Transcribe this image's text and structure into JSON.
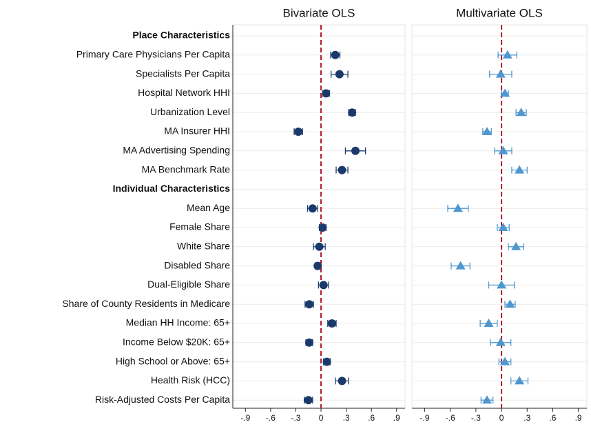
{
  "chart_data": {
    "type": "coefplot",
    "groups": [
      {
        "name": "Place Characteristics",
        "categories": [
          "Primary Care Physicians Per Capita",
          "Specialists Per Capita",
          "Hospital Network HHI",
          "Urbanization Level",
          "MA Insurer HHI",
          "MA Advertising Spending",
          "MA Benchmark Rate"
        ]
      },
      {
        "name": "Individual Characteristics",
        "categories": [
          "Mean Age",
          "Female Share",
          "White Share",
          "Disabled Share",
          "Dual-Eligible Share",
          "Share of County Residents in Medicare",
          "Median HH Income: 65+",
          "Income Below $20K: 65+",
          "High School or Above: 65+",
          "Health Risk (HCC)",
          "Risk-Adjusted Costs Per Capita"
        ]
      }
    ],
    "series": [
      {
        "name": "Bivariate OLS",
        "color": "#1b3a6b",
        "marker": "circle",
        "values": [
          0.17,
          0.22,
          0.06,
          0.37,
          -0.27,
          0.41,
          0.25,
          -0.1,
          0.02,
          -0.02,
          -0.04,
          0.03,
          -0.14,
          0.13,
          -0.14,
          0.07,
          0.25,
          -0.15
        ],
        "errors": [
          0.055,
          0.1,
          0.04,
          0.04,
          0.05,
          0.12,
          0.07,
          0.06,
          0.04,
          0.07,
          0.03,
          0.06,
          0.05,
          0.05,
          0.04,
          0.04,
          0.08,
          0.05
        ]
      },
      {
        "name": "Multivariate OLS",
        "color": "#4f97cf",
        "marker": "triangle",
        "values": [
          0.07,
          -0.01,
          0.04,
          0.23,
          -0.17,
          0.02,
          0.21,
          -0.51,
          0.02,
          0.17,
          -0.48,
          0.0,
          0.1,
          -0.15,
          -0.01,
          0.04,
          0.21,
          -0.17
        ],
        "errors": [
          0.11,
          0.13,
          0.04,
          0.06,
          0.05,
          0.1,
          0.09,
          0.12,
          0.07,
          0.09,
          0.11,
          0.15,
          0.06,
          0.1,
          0.12,
          0.07,
          0.1,
          0.07
        ]
      }
    ],
    "xlim": [
      -1.05,
      1.0
    ],
    "xticks": [
      {
        "value": -0.9,
        "label": "-.9"
      },
      {
        "value": -0.6,
        "label": "-.6"
      },
      {
        "value": -0.3,
        "label": "-.3"
      },
      0,
      {
        "value": 0.3,
        "label": ".3"
      },
      {
        "value": 0.6,
        "label": ".6"
      },
      {
        "value": 0.9,
        "label": ".9"
      }
    ],
    "refline": {
      "value": 0,
      "color": "#b2182b"
    },
    "grid": true
  }
}
